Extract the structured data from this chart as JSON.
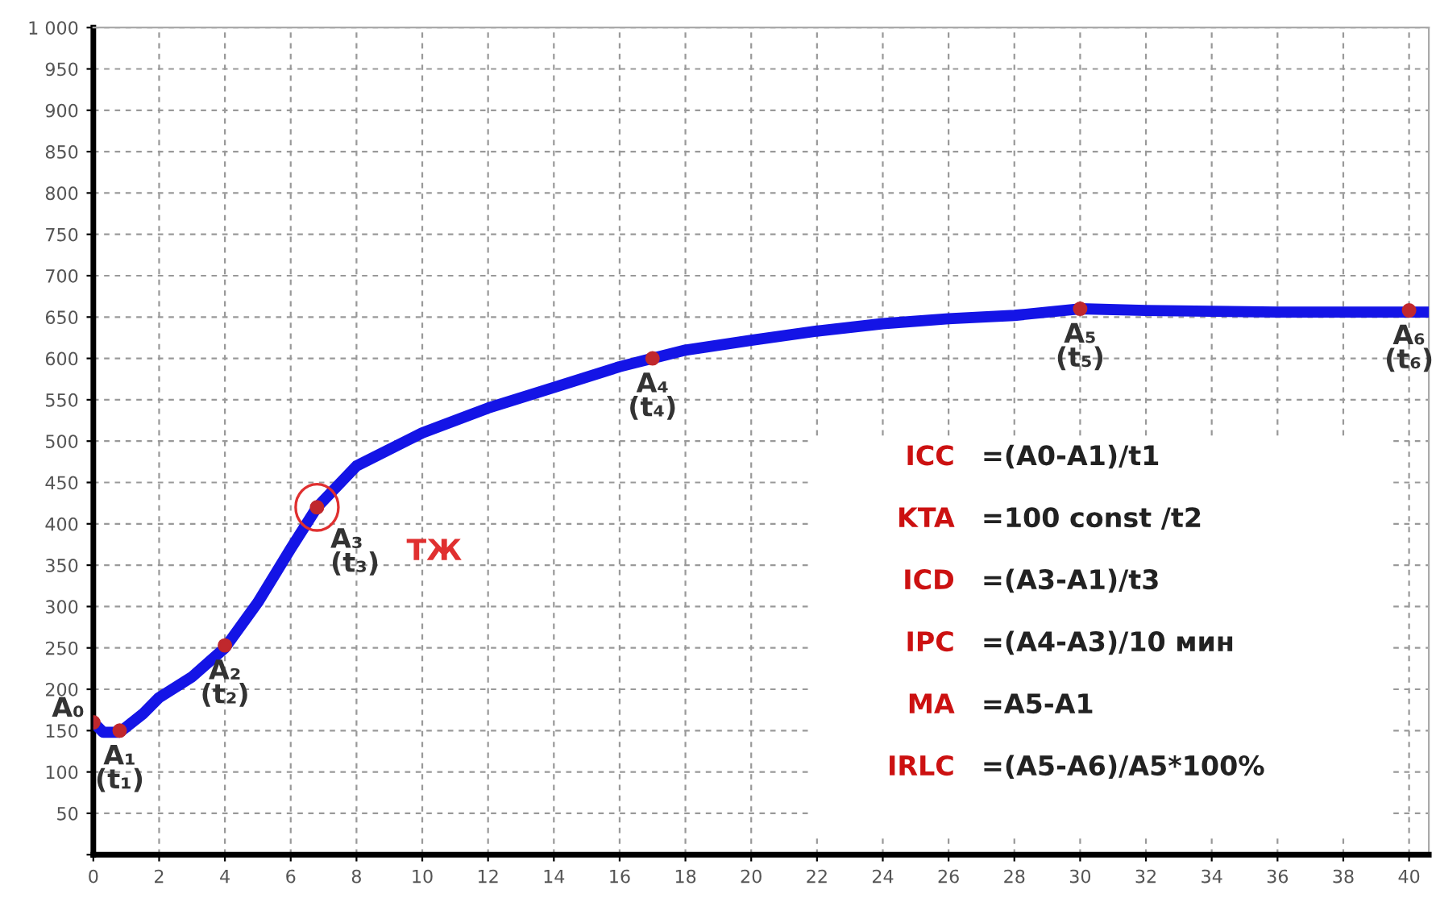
{
  "chart_data": {
    "type": "line",
    "xlim": [
      0,
      40.6
    ],
    "ylim": [
      0,
      1000
    ],
    "xticks": [
      0,
      2,
      4,
      6,
      8,
      10,
      12,
      14,
      16,
      18,
      20,
      22,
      24,
      26,
      28,
      30,
      32,
      34,
      36,
      38,
      40
    ],
    "yticks": [
      {
        "value": 0,
        "label": null
      },
      50,
      100,
      150,
      200,
      250,
      300,
      350,
      400,
      450,
      500,
      550,
      600,
      650,
      700,
      750,
      800,
      850,
      900,
      950,
      {
        "value": 1000,
        "label": "1 000"
      }
    ],
    "grid": true,
    "line_style": "solid",
    "series": [
      {
        "type": "line",
        "color": "#1414e6",
        "marker": "none",
        "x": [
          0,
          0.3,
          0.8,
          1.5,
          2,
          3,
          4,
          5,
          6,
          6.8,
          8,
          10,
          12,
          14,
          16,
          17,
          18,
          20,
          22,
          24,
          26,
          28,
          30,
          32,
          34,
          36,
          38,
          40,
          40.6
        ],
        "values": [
          160,
          148,
          148,
          170,
          190,
          215,
          250,
          305,
          370,
          420,
          470,
          510,
          540,
          565,
          590,
          600,
          610,
          622,
          633,
          642,
          648,
          652,
          660,
          658,
          657,
          656,
          656,
          656,
          656
        ]
      },
      {
        "type": "scatter",
        "color": "#c0282d",
        "marker": "circle",
        "x": [
          0,
          0.8,
          4,
          6.8,
          17,
          30,
          40
        ],
        "values": [
          160,
          150,
          253,
          420,
          600,
          660,
          658
        ]
      }
    ],
    "annotations": [
      {
        "text": "A₀",
        "x": 0,
        "y": 160
      },
      {
        "text": "A₁\n(t₁)",
        "x": 0.8,
        "y": 150
      },
      {
        "text": "A₂\n(t₂)",
        "x": 4,
        "y": 253
      },
      {
        "text": "A₃\n(t₃)",
        "x": 6.8,
        "y": 420
      },
      {
        "text": "A₄\n(t₄)",
        "x": 17,
        "y": 600
      },
      {
        "text": "A₅\n(t₅)",
        "x": 30,
        "y": 660
      },
      {
        "text": "A₆\n(t₆)",
        "x": 40,
        "y": 658
      },
      "ТЖ",
      "ICC",
      "=(A0-A1)/t1",
      "KTA",
      "=100 const /t2",
      "ICD",
      "=(A3-A1)/t3",
      "IPC",
      "=(A4-A3)/10 мин",
      "MA",
      "=A5-A1",
      "IRLC",
      "=(A5-A6)/A5*100%"
    ]
  }
}
